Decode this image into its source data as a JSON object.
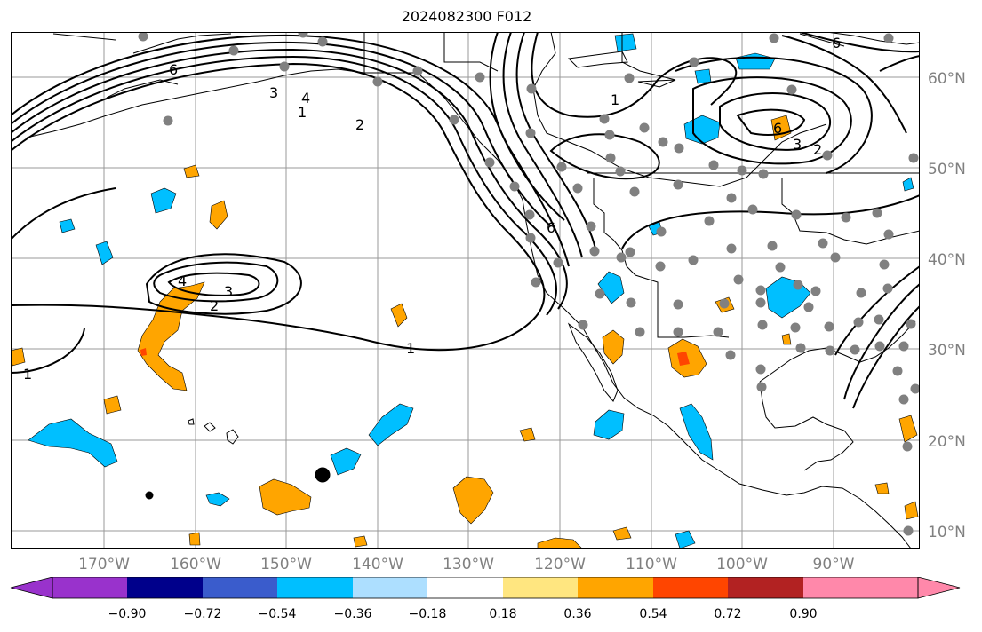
{
  "title": "2024082300 F012",
  "lon_labels": [
    "170°W",
    "160°W",
    "150°W",
    "140°W",
    "130°W",
    "120°W",
    "110°W",
    "100°W",
    "90°W"
  ],
  "lat_labels": [
    "60°N",
    "50°N",
    "40°N",
    "30°N",
    "20°N",
    "10°N"
  ],
  "contour_labels": [
    "1",
    "1",
    "1",
    "1",
    "2",
    "2",
    "2",
    "3",
    "3",
    "3",
    "4",
    "4",
    "6",
    "6",
    "6",
    "6"
  ],
  "colorbar": {
    "ticks": [
      "−0.90",
      "−0.72",
      "−0.54",
      "−0.36",
      "−0.18",
      "0.18",
      "0.36",
      "0.54",
      "0.72",
      "0.90"
    ],
    "colors": [
      "#9932CC",
      "#00008B",
      "#3A5CCC",
      "#00BFFF",
      "#ADDFFF",
      "#FFFFFF",
      "#FFE680",
      "#FFA500",
      "#FF4500",
      "#B22222",
      "#FF88AA"
    ]
  },
  "colors": {
    "grid": "#999999",
    "station": "#808080",
    "contour": "#000000",
    "marker": "#000000"
  }
}
